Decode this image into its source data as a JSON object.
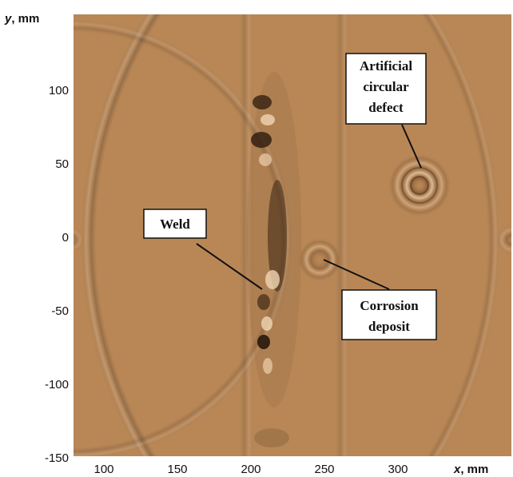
{
  "figure": {
    "y_axis_title": "y",
    "y_axis_unit": ", mm",
    "x_axis_title": "x",
    "x_axis_unit": ", mm",
    "y_ticks": [
      "100",
      "50",
      "0",
      "-50",
      "-100",
      "-150"
    ],
    "x_ticks": [
      "100",
      "150",
      "200",
      "250",
      "300"
    ],
    "annotations": {
      "defect_line1": "Artificial",
      "defect_line2": "circular",
      "defect_line3": "defect",
      "weld": "Weld",
      "corrosion_line1": "Corrosion",
      "corrosion_line2": "deposit"
    },
    "colors": {
      "background_tan": "#b98756",
      "ripple_dark": "#4a2f1a",
      "ripple_light": "#e8c7a0"
    }
  }
}
